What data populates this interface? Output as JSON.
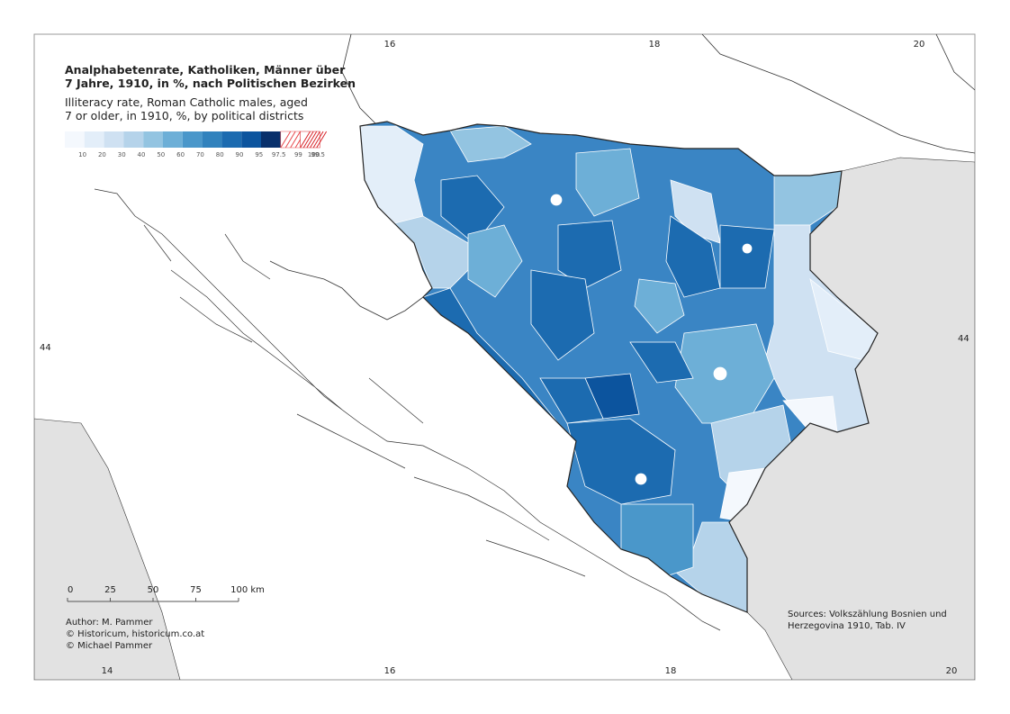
{
  "title_lines": [
    "Analphabetenrate, Katholiken, Männer über",
    "7 Jahre, 1910, in %, nach Politischen Bezirken"
  ],
  "subtitle_lines": [
    "Illiteracy rate, Roman Catholic males, aged",
    "7 or older, in 1910, %, by political districts"
  ],
  "legend": {
    "labels": [
      "10",
      "20",
      "30",
      "40",
      "50",
      "60",
      "70",
      "80",
      "90",
      "95",
      "97.5",
      "99",
      "99.5",
      "100"
    ],
    "colors": [
      "#f4f8fd",
      "#e3eef9",
      "#cfe1f2",
      "#b5d3ea",
      "#93c4e1",
      "#6dafd7",
      "#4a97ca",
      "#3182bd",
      "#1c6bb0",
      "#0c549e",
      "#08306b",
      "#e8484c",
      "#d8242a"
    ]
  },
  "graticule": {
    "top": [
      "16",
      "18",
      "20"
    ],
    "bottom": [
      "14",
      "16",
      "18",
      "20"
    ],
    "left": [
      "44"
    ],
    "right": [
      "44"
    ]
  },
  "scale_bar": [
    "0",
    "25",
    "50",
    "75",
    "100 km"
  ],
  "author": [
    "Author: M. Pammer",
    "© Historicum, historicum.co.at",
    "© Michael Pammer"
  ],
  "sources": [
    "Sources: Volkszählung Bosnien und",
    "Herzegovina 1910, Tab. IV"
  ]
}
